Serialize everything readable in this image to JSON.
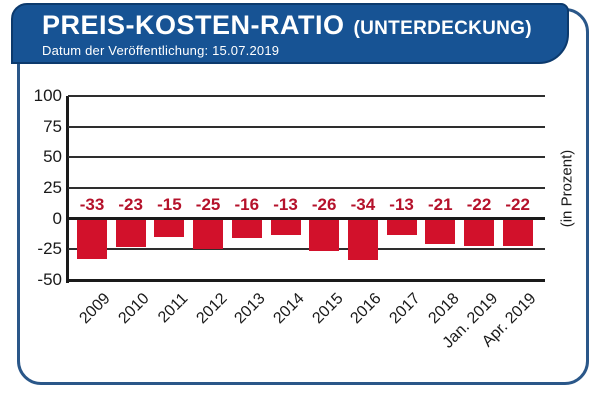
{
  "header": {
    "title": "PREIS-KOSTEN-RATIO",
    "title_suffix": "(UNTERDECKUNG)",
    "subtitle": "Datum der Veröffentlichung: 15.07.2019"
  },
  "colors": {
    "header_bg": "#175394",
    "header_outline": "#0c3a6d",
    "frame_border": "#2a5789",
    "bar": "#d2112b",
    "value_label": "#b5122b",
    "grid": "#2e2e2e",
    "axis": "#1a1a1a"
  },
  "chart_data": {
    "type": "bar",
    "title": "PREIS-KOSTEN-RATIO (UNTERDECKUNG)",
    "categories": [
      "2009",
      "2010",
      "2011",
      "2012",
      "2013",
      "2014",
      "2015",
      "2016",
      "2017",
      "2018",
      "Jan. 2019",
      "Apr. 2019"
    ],
    "values": [
      -33,
      -23,
      -15,
      -25,
      -16,
      -13,
      -26,
      -34,
      -13,
      -21,
      -22,
      -22
    ],
    "xlabel": "",
    "ylabel": "(in Prozent)",
    "ylim": [
      -50,
      100
    ],
    "yticks": [
      100,
      75,
      50,
      25,
      0,
      -25,
      -50
    ],
    "grid": true,
    "legend": false,
    "bar_color": "#d2112b"
  }
}
